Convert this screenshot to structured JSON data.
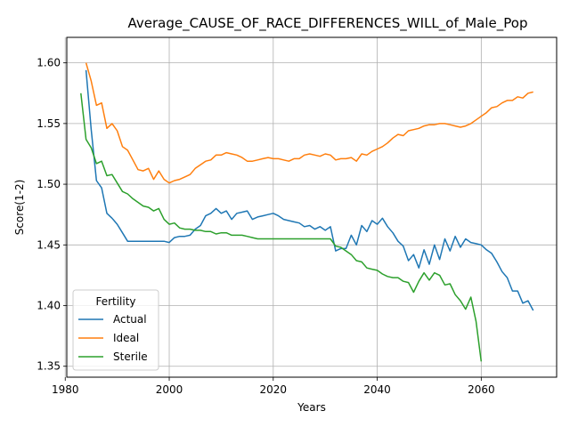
{
  "chart_data": {
    "type": "line",
    "title": "Average_CAUSE_OF_RACE_DIFFERENCES_WILL_of_Male_Pop",
    "xlabel": "Years",
    "ylabel": "Score(1-2)",
    "xlim": [
      1980.3,
      2074.5
    ],
    "ylim": [
      1.341,
      1.621
    ],
    "xticks": [
      1980,
      2000,
      2020,
      2040,
      2060
    ],
    "xtick_labels": [
      "1980",
      "2000",
      "2020",
      "2040",
      "2060"
    ],
    "yticks": [
      1.35,
      1.4,
      1.45,
      1.5,
      1.55,
      1.6
    ],
    "ytick_labels": [
      "1.35",
      "1.40",
      "1.45",
      "1.50",
      "1.55",
      "1.60"
    ],
    "grid": true,
    "legend": {
      "title": "Fertility",
      "position": "lower-left"
    },
    "series": [
      {
        "name": "Actual",
        "color": "#1f77b4",
        "x": [
          1984,
          1985,
          1986,
          1987,
          1988,
          1989,
          1990,
          1991,
          1992,
          1993,
          1994,
          1995,
          1996,
          1997,
          1998,
          1999,
          2000,
          2001,
          2002,
          2003,
          2004,
          2005,
          2006,
          2007,
          2008,
          2009,
          2010,
          2011,
          2012,
          2013,
          2014,
          2015,
          2016,
          2017,
          2018,
          2019,
          2020,
          2021,
          2022,
          2023,
          2024,
          2025,
          2026,
          2027,
          2028,
          2029,
          2030,
          2031,
          2032,
          2033,
          2034,
          2035,
          2036,
          2037,
          2038,
          2039,
          2040,
          2041,
          2042,
          2043,
          2044,
          2045,
          2046,
          2047,
          2048,
          2049,
          2050,
          2051,
          2052,
          2053,
          2054,
          2055,
          2056,
          2057,
          2058,
          2059,
          2060,
          2061,
          2062,
          2063,
          2064,
          2065,
          2066,
          2067,
          2068,
          2069,
          2070
        ],
        "y": [
          1.594,
          1.545,
          1.503,
          1.497,
          1.476,
          1.472,
          1.467,
          1.46,
          1.453,
          1.453,
          1.453,
          1.453,
          1.453,
          1.453,
          1.453,
          1.453,
          1.452,
          1.456,
          1.457,
          1.457,
          1.458,
          1.463,
          1.466,
          1.474,
          1.476,
          1.48,
          1.476,
          1.478,
          1.471,
          1.476,
          1.477,
          1.478,
          1.471,
          1.473,
          1.474,
          1.475,
          1.476,
          1.474,
          1.471,
          1.47,
          1.469,
          1.468,
          1.465,
          1.466,
          1.463,
          1.465,
          1.462,
          1.465,
          1.445,
          1.447,
          1.447,
          1.458,
          1.45,
          1.466,
          1.461,
          1.47,
          1.467,
          1.472,
          1.465,
          1.46,
          1.453,
          1.449,
          1.437,
          1.442,
          1.431,
          1.446,
          1.434,
          1.45,
          1.438,
          1.455,
          1.445,
          1.457,
          1.448,
          1.455,
          1.452,
          1.451,
          1.45,
          1.446,
          1.443,
          1.436,
          1.428,
          1.423,
          1.412,
          1.412,
          1.402,
          1.404,
          1.396
        ]
      },
      {
        "name": "Ideal",
        "color": "#ff7f0e",
        "x": [
          1984,
          1985,
          1986,
          1987,
          1988,
          1989,
          1990,
          1991,
          1992,
          1993,
          1994,
          1995,
          1996,
          1997,
          1998,
          1999,
          2000,
          2001,
          2002,
          2003,
          2004,
          2005,
          2006,
          2007,
          2008,
          2009,
          2010,
          2011,
          2012,
          2013,
          2014,
          2015,
          2016,
          2017,
          2018,
          2019,
          2020,
          2021,
          2022,
          2023,
          2024,
          2025,
          2026,
          2027,
          2028,
          2029,
          2030,
          2031,
          2032,
          2033,
          2034,
          2035,
          2036,
          2037,
          2038,
          2039,
          2040,
          2041,
          2042,
          2043,
          2044,
          2045,
          2046,
          2047,
          2048,
          2049,
          2050,
          2051,
          2052,
          2053,
          2054,
          2055,
          2056,
          2057,
          2058,
          2059,
          2060,
          2061,
          2062,
          2063,
          2064,
          2065,
          2066,
          2067,
          2068,
          2069,
          2070
        ],
        "y": [
          1.6,
          1.585,
          1.565,
          1.567,
          1.546,
          1.55,
          1.544,
          1.531,
          1.528,
          1.52,
          1.512,
          1.511,
          1.513,
          1.504,
          1.511,
          1.504,
          1.501,
          1.503,
          1.504,
          1.506,
          1.508,
          1.513,
          1.516,
          1.519,
          1.52,
          1.524,
          1.524,
          1.526,
          1.525,
          1.524,
          1.522,
          1.519,
          1.519,
          1.52,
          1.521,
          1.522,
          1.521,
          1.521,
          1.52,
          1.519,
          1.521,
          1.521,
          1.524,
          1.525,
          1.524,
          1.523,
          1.525,
          1.524,
          1.52,
          1.521,
          1.521,
          1.522,
          1.519,
          1.525,
          1.524,
          1.527,
          1.529,
          1.531,
          1.534,
          1.538,
          1.541,
          1.54,
          1.544,
          1.545,
          1.546,
          1.548,
          1.549,
          1.549,
          1.55,
          1.55,
          1.549,
          1.548,
          1.547,
          1.548,
          1.55,
          1.553,
          1.556,
          1.559,
          1.563,
          1.564,
          1.567,
          1.569,
          1.569,
          1.572,
          1.571,
          1.575,
          1.576
        ]
      },
      {
        "name": "Sterile",
        "color": "#2ca02c",
        "x": [
          1983,
          1984,
          1985,
          1986,
          1987,
          1988,
          1989,
          1990,
          1991,
          1992,
          1993,
          1994,
          1995,
          1996,
          1997,
          1998,
          1999,
          2000,
          2001,
          2002,
          2003,
          2004,
          2005,
          2006,
          2007,
          2008,
          2009,
          2010,
          2011,
          2012,
          2013,
          2014,
          2015,
          2016,
          2017,
          2018,
          2019,
          2020,
          2021,
          2022,
          2023,
          2024,
          2025,
          2026,
          2027,
          2028,
          2029,
          2030,
          2031,
          2032,
          2033,
          2034,
          2035,
          2036,
          2037,
          2038,
          2039,
          2040,
          2041,
          2042,
          2043,
          2044,
          2045,
          2046,
          2047,
          2048,
          2049,
          2050,
          2051,
          2052,
          2053,
          2054,
          2055,
          2056,
          2057,
          2058,
          2059,
          2060
        ],
        "y": [
          1.575,
          1.537,
          1.53,
          1.517,
          1.519,
          1.507,
          1.508,
          1.501,
          1.494,
          1.492,
          1.488,
          1.485,
          1.482,
          1.481,
          1.478,
          1.48,
          1.471,
          1.467,
          1.468,
          1.464,
          1.463,
          1.463,
          1.462,
          1.462,
          1.461,
          1.461,
          1.459,
          1.46,
          1.46,
          1.458,
          1.458,
          1.458,
          1.457,
          1.456,
          1.455,
          1.455,
          1.455,
          1.455,
          1.455,
          1.455,
          1.455,
          1.455,
          1.455,
          1.455,
          1.455,
          1.455,
          1.455,
          1.455,
          1.455,
          1.449,
          1.448,
          1.445,
          1.442,
          1.437,
          1.436,
          1.431,
          1.43,
          1.429,
          1.426,
          1.424,
          1.423,
          1.423,
          1.42,
          1.419,
          1.411,
          1.42,
          1.427,
          1.421,
          1.427,
          1.425,
          1.417,
          1.418,
          1.409,
          1.404,
          1.397,
          1.407,
          1.387,
          1.354
        ]
      }
    ]
  }
}
